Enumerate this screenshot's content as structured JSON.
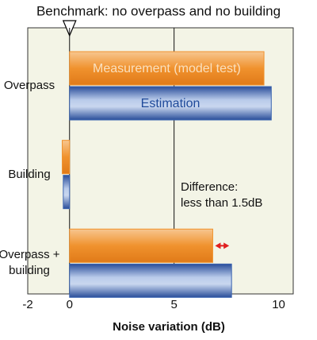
{
  "chart_data": {
    "type": "barh",
    "title": "Benchmark: no overpass and no building",
    "xlabel": "Noise variation (dB)",
    "categories": [
      "Overpass",
      "Building",
      "Overpass + building"
    ],
    "series": [
      {
        "name": "Measurement (model test)",
        "color": "#f0922e",
        "values": [
          9.3,
          -0.35,
          6.85
        ]
      },
      {
        "name": "Estimation",
        "color": "#3a63b0",
        "values": [
          9.65,
          -0.3,
          7.75
        ]
      }
    ],
    "annotations": [
      "Difference:",
      "less than 1.5dB"
    ],
    "xlim": [
      -2,
      10.7
    ],
    "xticks": [
      -2,
      0,
      5,
      10
    ]
  }
}
